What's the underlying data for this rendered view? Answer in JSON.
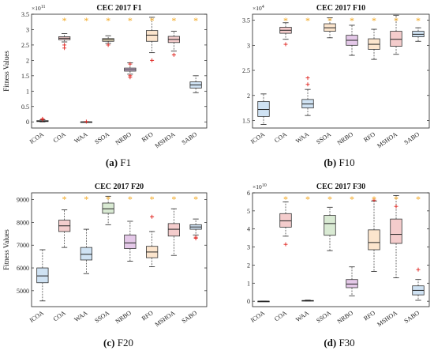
{
  "chart_data": [
    {
      "type": "box",
      "title": "CEC 2017 F1",
      "ylabel": "Fitness Values",
      "exponent": "×10",
      "exponent_power": "11",
      "categories": [
        "ICOA",
        "COA",
        "WAA",
        "SSOA",
        "NRBO",
        "RFO",
        "MSHOA",
        "SABO"
      ],
      "ylim": [
        -0.2,
        3.5
      ],
      "yticks": [
        0,
        0.5,
        1,
        1.5,
        2,
        2.5,
        3,
        3.5
      ],
      "ytick_labels": [
        "0",
        "0.5",
        "1",
        "1.5",
        "2",
        "2.5",
        "3",
        "3.5"
      ],
      "significance_marker": "*",
      "significant": [
        false,
        true,
        true,
        true,
        true,
        true,
        true,
        true
      ],
      "boxes": [
        {
          "name": "ICOA",
          "min": 0,
          "q1": 0.01,
          "median": 0.02,
          "q3": 0.04,
          "max": 0.07,
          "outliers": [
            0.08,
            0.1
          ],
          "color": "#d9d9d9"
        },
        {
          "name": "COA",
          "min": 2.6,
          "q1": 2.67,
          "median": 2.72,
          "q3": 2.77,
          "max": 2.87,
          "outliers": [
            2.4,
            2.5
          ],
          "color": "#f4cccc"
        },
        {
          "name": "WAA",
          "min": 0,
          "q1": 0,
          "median": 0,
          "q3": 0,
          "max": 0,
          "outliers": [
            0.01
          ],
          "color": "#d9d9d9"
        },
        {
          "name": "SSOA",
          "min": 2.55,
          "q1": 2.62,
          "median": 2.67,
          "q3": 2.71,
          "max": 2.8,
          "outliers": [
            2.5
          ],
          "color": "#fff2cc"
        },
        {
          "name": "NRBO",
          "min": 1.55,
          "q1": 1.65,
          "median": 1.7,
          "q3": 1.75,
          "max": 1.92,
          "outliers": [
            1.45,
            1.5,
            1.88
          ],
          "color": "#e4c8e8"
        },
        {
          "name": "RFO",
          "min": 2.25,
          "q1": 2.62,
          "median": 2.82,
          "q3": 2.97,
          "max": 3.4,
          "outliers": [
            2.0
          ],
          "color": "#fce5cd"
        },
        {
          "name": "MSHOA",
          "min": 2.3,
          "q1": 2.58,
          "median": 2.68,
          "q3": 2.78,
          "max": 2.95,
          "outliers": [
            2.18
          ],
          "color": "#f4cccc"
        },
        {
          "name": "SABO",
          "min": 0.95,
          "q1": 1.1,
          "median": 1.2,
          "q3": 1.3,
          "max": 1.5,
          "outliers": [],
          "color": "#cfe2f3"
        }
      ],
      "caption_label": "(a)",
      "caption_text": "F1"
    },
    {
      "type": "box",
      "title": "CEC 2017 F10",
      "ylabel": "",
      "exponent": "×10",
      "exponent_power": "4",
      "categories": [
        "ICOA",
        "COA",
        "WAA",
        "SSOA",
        "NRBO",
        "RFO",
        "MSHOA",
        "SABO"
      ],
      "ylim": [
        1.35,
        3.62
      ],
      "yticks": [
        1.5,
        2,
        2.5,
        3,
        3.5
      ],
      "ytick_labels": [
        "1.5",
        "2",
        "2.5",
        "3",
        "3.5"
      ],
      "significance_marker": "*",
      "significant": [
        false,
        true,
        true,
        true,
        true,
        true,
        true,
        true
      ],
      "boxes": [
        {
          "name": "ICOA",
          "min": 1.42,
          "q1": 1.58,
          "median": 1.72,
          "q3": 1.88,
          "max": 2.03,
          "outliers": [],
          "color": "#cfe2f3"
        },
        {
          "name": "COA",
          "min": 3.12,
          "q1": 3.24,
          "median": 3.3,
          "q3": 3.36,
          "max": 3.45,
          "outliers": [
            3.02
          ],
          "color": "#f4cccc"
        },
        {
          "name": "WAA",
          "min": 1.6,
          "q1": 1.75,
          "median": 1.83,
          "q3": 1.92,
          "max": 2.12,
          "outliers": [
            2.35,
            2.22
          ],
          "color": "#cfe2f3"
        },
        {
          "name": "SSOA",
          "min": 3.15,
          "q1": 3.28,
          "median": 3.35,
          "q3": 3.43,
          "max": 3.55,
          "outliers": [],
          "color": "#fce5cd"
        },
        {
          "name": "NRBO",
          "min": 2.8,
          "q1": 3.0,
          "median": 3.1,
          "q3": 3.2,
          "max": 3.4,
          "outliers": [],
          "color": "#e4c8e8"
        },
        {
          "name": "RFO",
          "min": 2.72,
          "q1": 2.92,
          "median": 3.02,
          "q3": 3.13,
          "max": 3.32,
          "outliers": [],
          "color": "#fce5cd"
        },
        {
          "name": "MSHOA",
          "min": 2.82,
          "q1": 2.98,
          "median": 3.12,
          "q3": 3.28,
          "max": 3.6,
          "outliers": [],
          "color": "#f4cccc"
        },
        {
          "name": "SABO",
          "min": 3.08,
          "q1": 3.17,
          "median": 3.22,
          "q3": 3.28,
          "max": 3.35,
          "outliers": [],
          "color": "#cfe2f3"
        }
      ],
      "caption_label": "(b)",
      "caption_text": "F10"
    },
    {
      "type": "box",
      "title": "CEC 2017 F20",
      "ylabel": "Fitness Values",
      "exponent": "",
      "exponent_power": "",
      "categories": [
        "ICOA",
        "COA",
        "WAA",
        "SSOA",
        "NRBO",
        "RFO",
        "MSHOA",
        "SABO"
      ],
      "ylim": [
        4300,
        9300
      ],
      "yticks": [
        5000,
        6000,
        7000,
        8000,
        9000
      ],
      "ytick_labels": [
        "5000",
        "6000",
        "7000",
        "8000",
        "9000"
      ],
      "significance_marker": "*",
      "significant": [
        false,
        true,
        true,
        true,
        true,
        true,
        true,
        true
      ],
      "boxes": [
        {
          "name": "ICOA",
          "min": 4550,
          "q1": 5350,
          "median": 5650,
          "q3": 6000,
          "max": 6800,
          "outliers": [],
          "color": "#cfe2f3"
        },
        {
          "name": "COA",
          "min": 6900,
          "q1": 7600,
          "median": 7850,
          "q3": 8100,
          "max": 8550,
          "outliers": [],
          "color": "#f4cccc"
        },
        {
          "name": "WAA",
          "min": 5750,
          "q1": 6350,
          "median": 6600,
          "q3": 6900,
          "max": 7700,
          "outliers": [],
          "color": "#cfe2f3"
        },
        {
          "name": "SSOA",
          "min": 7900,
          "q1": 8400,
          "median": 8600,
          "q3": 8850,
          "max": 9150,
          "outliers": [],
          "color": "#d9ead3"
        },
        {
          "name": "NRBO",
          "min": 6300,
          "q1": 6850,
          "median": 7100,
          "q3": 7450,
          "max": 8050,
          "outliers": [],
          "color": "#e4c8e8"
        },
        {
          "name": "RFO",
          "min": 6050,
          "q1": 6450,
          "median": 6700,
          "q3": 6950,
          "max": 7600,
          "outliers": [
            8250
          ],
          "color": "#fce5cd"
        },
        {
          "name": "MSHOA",
          "min": 6550,
          "q1": 7400,
          "median": 7700,
          "q3": 7950,
          "max": 8600,
          "outliers": [],
          "color": "#f4cccc"
        },
        {
          "name": "SABO",
          "min": 7450,
          "q1": 7700,
          "median": 7800,
          "q3": 7900,
          "max": 8150,
          "outliers": [
            7300,
            7350
          ],
          "color": "#cfe2f3"
        }
      ],
      "caption_label": "(c)",
      "caption_text": "F20"
    },
    {
      "type": "box",
      "title": "CEC 2017 F30",
      "ylabel": "",
      "exponent": "×10",
      "exponent_power": "10",
      "categories": [
        "ICOA",
        "COA",
        "WAA",
        "SSOA",
        "NRBO",
        "RFO",
        "MSHOA",
        "SABO"
      ],
      "ylim": [
        -0.3,
        6
      ],
      "yticks": [
        0,
        1,
        2,
        3,
        4,
        5,
        6
      ],
      "ytick_labels": [
        "0",
        "1",
        "2",
        "3",
        "4",
        "5",
        "6"
      ],
      "significance_marker": "*",
      "significant": [
        false,
        true,
        true,
        true,
        true,
        true,
        true,
        true
      ],
      "boxes": [
        {
          "name": "ICOA",
          "min": 0,
          "q1": 0,
          "median": 0,
          "q3": 0,
          "max": 0,
          "outliers": [],
          "color": "#d9d9d9"
        },
        {
          "name": "COA",
          "min": 3.6,
          "q1": 4.1,
          "median": 4.45,
          "q3": 4.85,
          "max": 5.5,
          "outliers": [
            3.15
          ],
          "color": "#f4cccc"
        },
        {
          "name": "WAA",
          "min": 0.01,
          "q1": 0.02,
          "median": 0.03,
          "q3": 0.04,
          "max": 0.06,
          "outliers": [],
          "color": "#d9d9d9"
        },
        {
          "name": "SSOA",
          "min": 2.8,
          "q1": 3.65,
          "median": 4.3,
          "q3": 4.75,
          "max": 5.2,
          "outliers": [],
          "color": "#d9ead3"
        },
        {
          "name": "NRBO",
          "min": 0.3,
          "q1": 0.75,
          "median": 0.95,
          "q3": 1.2,
          "max": 1.9,
          "outliers": [],
          "color": "#e4c8e8"
        },
        {
          "name": "RFO",
          "min": 1.65,
          "q1": 2.85,
          "median": 3.25,
          "q3": 3.95,
          "max": 5.55,
          "outliers": [
            5.6
          ],
          "color": "#fce5cd"
        },
        {
          "name": "MSHOA",
          "min": 1.3,
          "q1": 3.2,
          "median": 3.7,
          "q3": 4.55,
          "max": 5.85,
          "outliers": [
            5.25
          ],
          "color": "#f4cccc"
        },
        {
          "name": "SABO",
          "min": 0.05,
          "q1": 0.35,
          "median": 0.6,
          "q3": 0.85,
          "max": 1.2,
          "outliers": [
            1.75
          ],
          "color": "#cfe2f3"
        }
      ],
      "caption_label": "(d)",
      "caption_text": "F30"
    }
  ]
}
